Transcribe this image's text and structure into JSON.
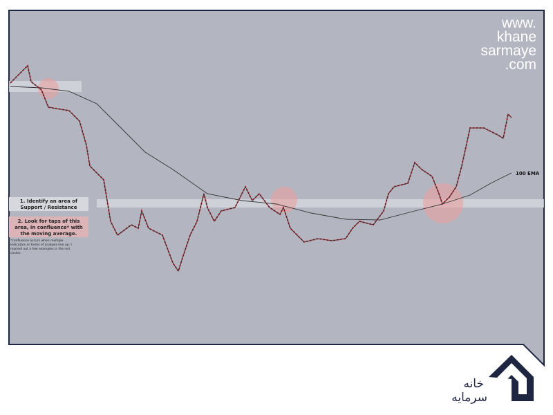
{
  "watermark": {
    "lines": [
      "www.",
      "khane",
      "sarmaye",
      ".com"
    ]
  },
  "ema_label": "100 EMA",
  "steps": [
    "1. Identify an area of Support / Resistance",
    "2. Look for taps of this area, in confluence* with the moving average."
  ],
  "footnote": "*confluence occurs when multiple indicators or forms of analysis line up. I marked out a few examples in the red circles.",
  "logo": {
    "line1": "خانه",
    "line2": "سرمایه"
  }
}
